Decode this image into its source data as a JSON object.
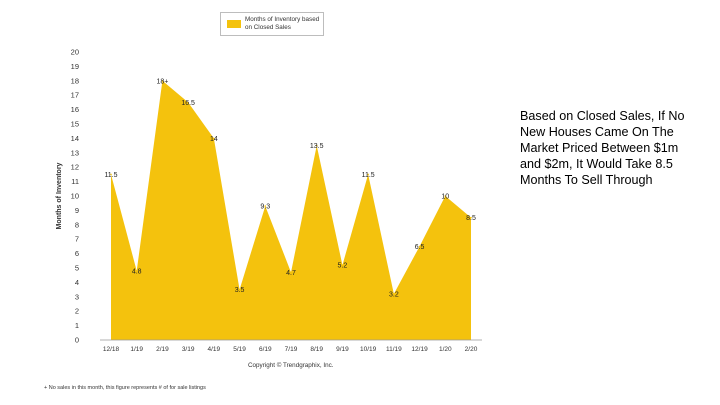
{
  "chart_data": {
    "type": "area",
    "categories": [
      "12/18",
      "1/19",
      "2/19",
      "3/19",
      "4/19",
      "5/19",
      "6/19",
      "7/19",
      "8/19",
      "9/19",
      "10/19",
      "11/19",
      "12/19",
      "1/20",
      "2/20"
    ],
    "values": [
      11.5,
      4.8,
      18,
      16.5,
      14,
      3.5,
      9.3,
      4.7,
      13.5,
      5.2,
      11.5,
      3.2,
      6.5,
      10,
      8.5
    ],
    "data_labels": [
      "11.5",
      "4.8",
      "18+",
      "16.5",
      "14",
      "3.5",
      "9.3",
      "4.7",
      "13.5",
      "5.2",
      "11.5",
      "3.2",
      "6.5",
      "10",
      "8.5"
    ],
    "series": [
      {
        "name": "Months of Inventory based on Closed Sales",
        "values": [
          11.5,
          4.8,
          18,
          16.5,
          14,
          3.5,
          9.3,
          4.7,
          13.5,
          5.2,
          11.5,
          3.2,
          6.5,
          10,
          8.5
        ]
      }
    ],
    "ylabel": "Months of Inventory",
    "xlabel": "",
    "ylim": [
      0,
      20
    ],
    "yticks": [
      0,
      1,
      2,
      3,
      4,
      5,
      6,
      7,
      8,
      9,
      10,
      11,
      12,
      13,
      14,
      15,
      16,
      17,
      18,
      19,
      20
    ],
    "grid": false,
    "legend": "top-center",
    "colors": {
      "fill": "#f4c20d",
      "axis": "#999999",
      "text": "#333333"
    }
  },
  "legend_label": "Months of Inventory based on Closed Sales",
  "copyright": "Copyright © Trendgraphix, Inc.",
  "footnote": "+ No sales in this month, this figure represents # of for sale listings",
  "side_text": "Based on Closed Sales, If No New Houses Came On The Market Priced Between $1m and $2m, It Would Take 8.5 Months To Sell Through"
}
